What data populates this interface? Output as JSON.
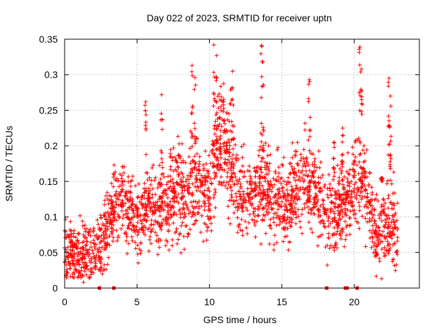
{
  "chart_data": {
    "type": "scatter",
    "title": "Day 022 of 2023, SRMTID for receiver uptn",
    "xlabel": "GPS time / hours",
    "ylabel": "SRMTID / TECUs",
    "xlim": [
      0,
      24.5
    ],
    "ylim": [
      0,
      0.35
    ],
    "grid": true,
    "marker": "+",
    "marker_color": "#ff0000",
    "x_ticks": [
      0,
      5,
      10,
      15,
      20
    ],
    "y_ticks": [
      0,
      0.05,
      0.1,
      0.15,
      0.2,
      0.25,
      0.3,
      0.35
    ],
    "x_tick_labels": [
      "0",
      "5",
      "10",
      "15",
      "20"
    ],
    "y_tick_labels": [
      "0",
      "0.05",
      "0.1",
      "0.15",
      "0.2",
      "0.25",
      "0.3",
      "0.35"
    ],
    "series": [
      {
        "name": "SRMTID",
        "profile": [
          [
            0.0,
            0.06,
            0.03
          ],
          [
            0.5,
            0.045,
            0.025
          ],
          [
            1.0,
            0.045,
            0.025
          ],
          [
            1.5,
            0.05,
            0.03
          ],
          [
            2.0,
            0.05,
            0.025
          ],
          [
            2.5,
            0.06,
            0.03
          ],
          [
            3.0,
            0.08,
            0.035
          ],
          [
            3.5,
            0.12,
            0.035
          ],
          [
            4.0,
            0.12,
            0.03
          ],
          [
            4.5,
            0.11,
            0.035
          ],
          [
            5.0,
            0.1,
            0.035
          ],
          [
            5.5,
            0.11,
            0.035
          ],
          [
            6.0,
            0.11,
            0.035
          ],
          [
            6.5,
            0.11,
            0.04
          ],
          [
            7.0,
            0.12,
            0.045
          ],
          [
            7.5,
            0.14,
            0.045
          ],
          [
            8.0,
            0.14,
            0.045
          ],
          [
            8.5,
            0.13,
            0.05
          ],
          [
            9.0,
            0.15,
            0.05
          ],
          [
            9.5,
            0.14,
            0.04
          ],
          [
            10.0,
            0.13,
            0.04
          ],
          [
            10.5,
            0.2,
            0.05
          ],
          [
            11.0,
            0.2,
            0.05
          ],
          [
            11.5,
            0.17,
            0.05
          ],
          [
            12.0,
            0.14,
            0.04
          ],
          [
            12.5,
            0.13,
            0.035
          ],
          [
            13.0,
            0.13,
            0.035
          ],
          [
            13.5,
            0.15,
            0.045
          ],
          [
            14.0,
            0.14,
            0.04
          ],
          [
            14.5,
            0.12,
            0.04
          ],
          [
            15.0,
            0.12,
            0.035
          ],
          [
            15.5,
            0.12,
            0.035
          ],
          [
            16.0,
            0.13,
            0.04
          ],
          [
            16.5,
            0.15,
            0.04
          ],
          [
            17.0,
            0.14,
            0.035
          ],
          [
            17.5,
            0.13,
            0.04
          ],
          [
            18.0,
            0.1,
            0.035
          ],
          [
            18.5,
            0.1,
            0.035
          ],
          [
            19.0,
            0.12,
            0.04
          ],
          [
            19.5,
            0.12,
            0.035
          ],
          [
            20.0,
            0.15,
            0.04
          ],
          [
            20.5,
            0.16,
            0.045
          ],
          [
            21.0,
            0.12,
            0.04
          ],
          [
            21.5,
            0.07,
            0.03
          ],
          [
            22.0,
            0.09,
            0.035
          ],
          [
            22.5,
            0.1,
            0.04
          ],
          [
            23.0,
            0.07,
            0.03
          ]
        ],
        "spikes": [
          [
            5.6,
            0.262
          ],
          [
            6.7,
            0.272
          ],
          [
            8.8,
            0.313
          ],
          [
            9.0,
            0.296
          ],
          [
            10.3,
            0.342
          ],
          [
            10.5,
            0.327
          ],
          [
            11.6,
            0.305
          ],
          [
            13.6,
            0.341
          ],
          [
            13.7,
            0.318
          ],
          [
            16.9,
            0.293
          ],
          [
            18.6,
            0.205
          ],
          [
            19.2,
            0.225
          ],
          [
            20.4,
            0.339
          ],
          [
            20.5,
            0.308
          ],
          [
            21.9,
            0.155
          ],
          [
            22.4,
            0.295
          ],
          [
            22.5,
            0.27
          ]
        ],
        "x_range": [
          0.0,
          23.0
        ],
        "point_count": 2400
      },
      {
        "name": "gap-markers",
        "x": [
          2.4,
          3.4,
          18.1,
          19.4,
          19.5,
          20.2
        ],
        "y": [
          0,
          0,
          0,
          0,
          0,
          0
        ]
      }
    ]
  }
}
